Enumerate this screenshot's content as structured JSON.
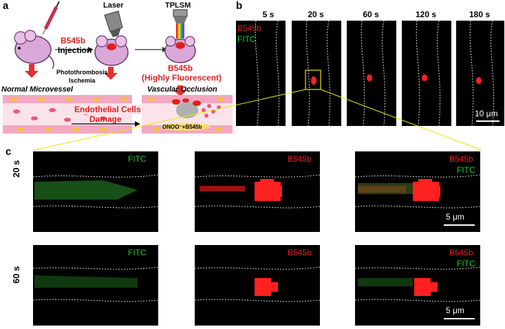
{
  "panel_a": {
    "label": "a",
    "probe": "B545b",
    "injection": "Injection",
    "laser": "Laser",
    "tplsm": "TPLSM",
    "photothrombosis": "Photothrombosis",
    "ischemia": "Ischemia",
    "result_title": "B545b",
    "result_sub": "(Highly Fluorescent)",
    "normal": "Normal Microvessel",
    "occlusion": "Vascular Occlusion",
    "damage_line1": "Endothelial Cells",
    "damage_line2": "Damage",
    "onoo": "ONOO⁻+B545b"
  },
  "panel_b": {
    "label": "b",
    "times": [
      "5 s",
      "20 s",
      "60 s",
      "120 s",
      "180 s"
    ],
    "legend_b545b": "B545b",
    "legend_fitc": "FITC",
    "scale": "10 μm"
  },
  "panel_c": {
    "label": "c",
    "rows": [
      {
        "time": "20 s",
        "scale": "5 μm"
      },
      {
        "time": "60 s",
        "scale": "5 μm"
      }
    ],
    "fitc": "FITC",
    "b545b": "B545b"
  },
  "colors": {
    "red": "#e02020",
    "green": "#22cc22",
    "pink": "#f2a8c8"
  }
}
